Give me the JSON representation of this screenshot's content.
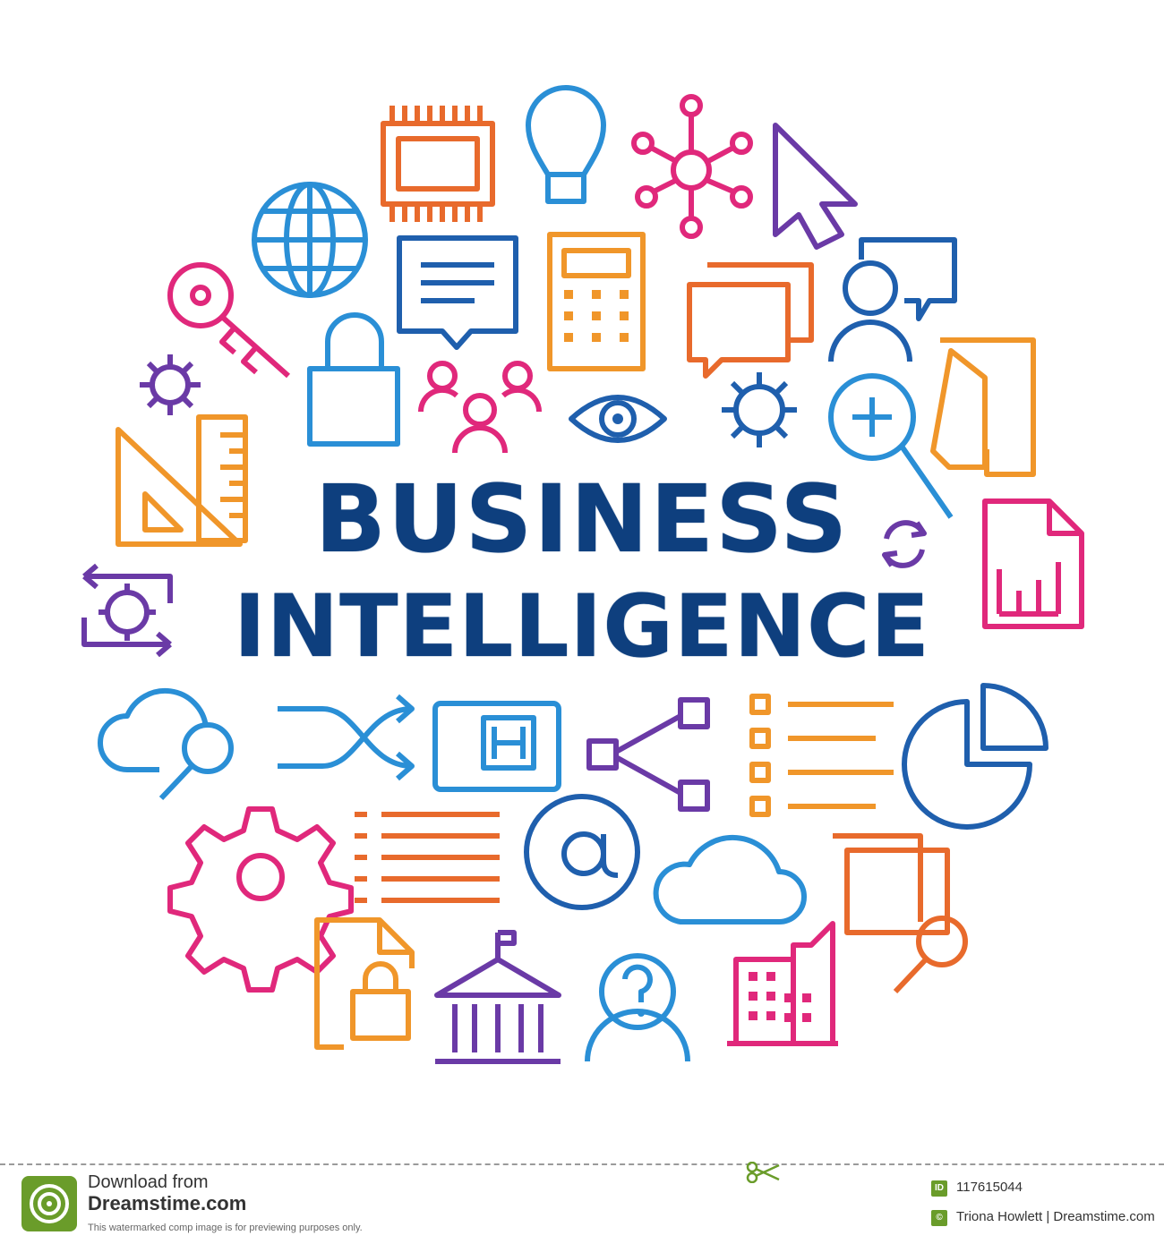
{
  "headline": {
    "line1": "BUSINESS",
    "line2": "INTELLIGENCE"
  },
  "footer": {
    "download_label": "Download from",
    "site_name": "Dreamstime.com",
    "preview_note": "This watermarked comp image is for previewing purposes only.",
    "id_badge": "ID",
    "image_id": "117615044",
    "copyright_badge": "©",
    "credit": "Triona Howlett | Dreamstime.com"
  },
  "palette": {
    "navy": "#0e3f7e",
    "blue": "#2a8fd6",
    "royal": "#1f5fad",
    "magenta": "#e0287b",
    "orange": "#e86a2c",
    "amber": "#f0962a",
    "purple": "#6a3aa6",
    "green": "#6a9c2a"
  },
  "icons": [
    "chip-icon",
    "lightbulb-icon",
    "network-icon",
    "cursor-icon",
    "globe-icon",
    "chat-bubble-icon",
    "calculator-icon",
    "speech-bubbles-icon",
    "user-chat-icon",
    "key-icon",
    "padlock-icon",
    "team-icon",
    "eye-icon",
    "gear-icon",
    "zoom-in-icon",
    "folder-icon",
    "ruler-triangle-icon",
    "sync-icon",
    "report-file-icon",
    "process-gear-icon",
    "cloud-search-icon",
    "shuffle-icon",
    "id-card-icon",
    "share-nodes-icon",
    "checklist-icon",
    "pie-chart-icon",
    "large-gear-icon",
    "list-icon",
    "at-sign-icon",
    "cloud-icon",
    "document-search-icon",
    "locked-file-icon",
    "bank-icon",
    "question-user-icon",
    "buildings-icon"
  ]
}
